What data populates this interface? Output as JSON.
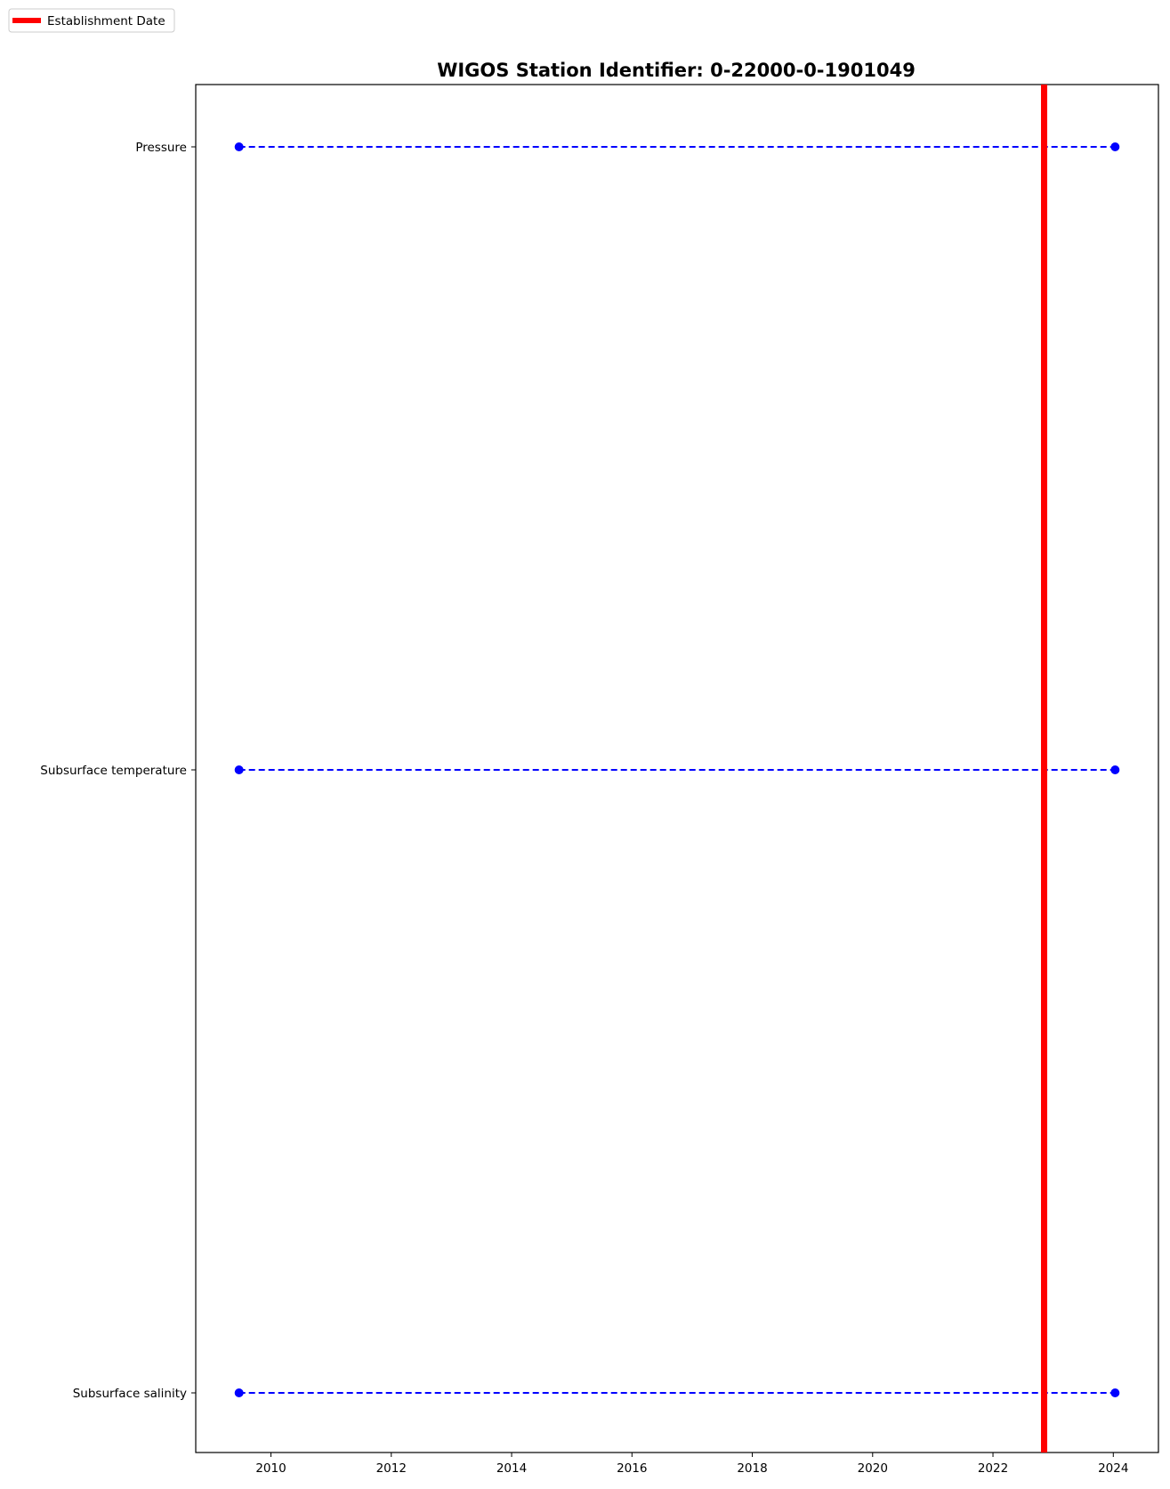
{
  "chart_data": {
    "type": "timeline",
    "title": "WIGOS Station Identifier: 0-22000-0-1901049",
    "xlabel": "",
    "ylabel": "",
    "xlim": [
      2008.75,
      2024.75
    ],
    "x_ticks": [
      2010,
      2012,
      2014,
      2016,
      2018,
      2020,
      2022,
      2024
    ],
    "x_tick_labels": [
      "2010",
      "2012",
      "2014",
      "2016",
      "2018",
      "2020",
      "2022",
      "2024"
    ],
    "categories": [
      "Pressure",
      "Subsurface temperature",
      "Subsurface salinity"
    ],
    "series": [
      {
        "category": "Pressure",
        "start": 2009.47,
        "end": 2024.03
      },
      {
        "category": "Subsurface temperature",
        "start": 2009.47,
        "end": 2024.03
      },
      {
        "category": "Subsurface salinity",
        "start": 2009.47,
        "end": 2024.03
      }
    ],
    "series_color": "#0000ff",
    "series_style": "dashed line with circle markers",
    "establishment_date": 2022.85,
    "establishment_color": "#ff0000",
    "legend": {
      "placement": "upper-left",
      "entries": [
        {
          "label": "Establishment Date",
          "color": "#ff0000"
        }
      ]
    },
    "grid": false
  }
}
